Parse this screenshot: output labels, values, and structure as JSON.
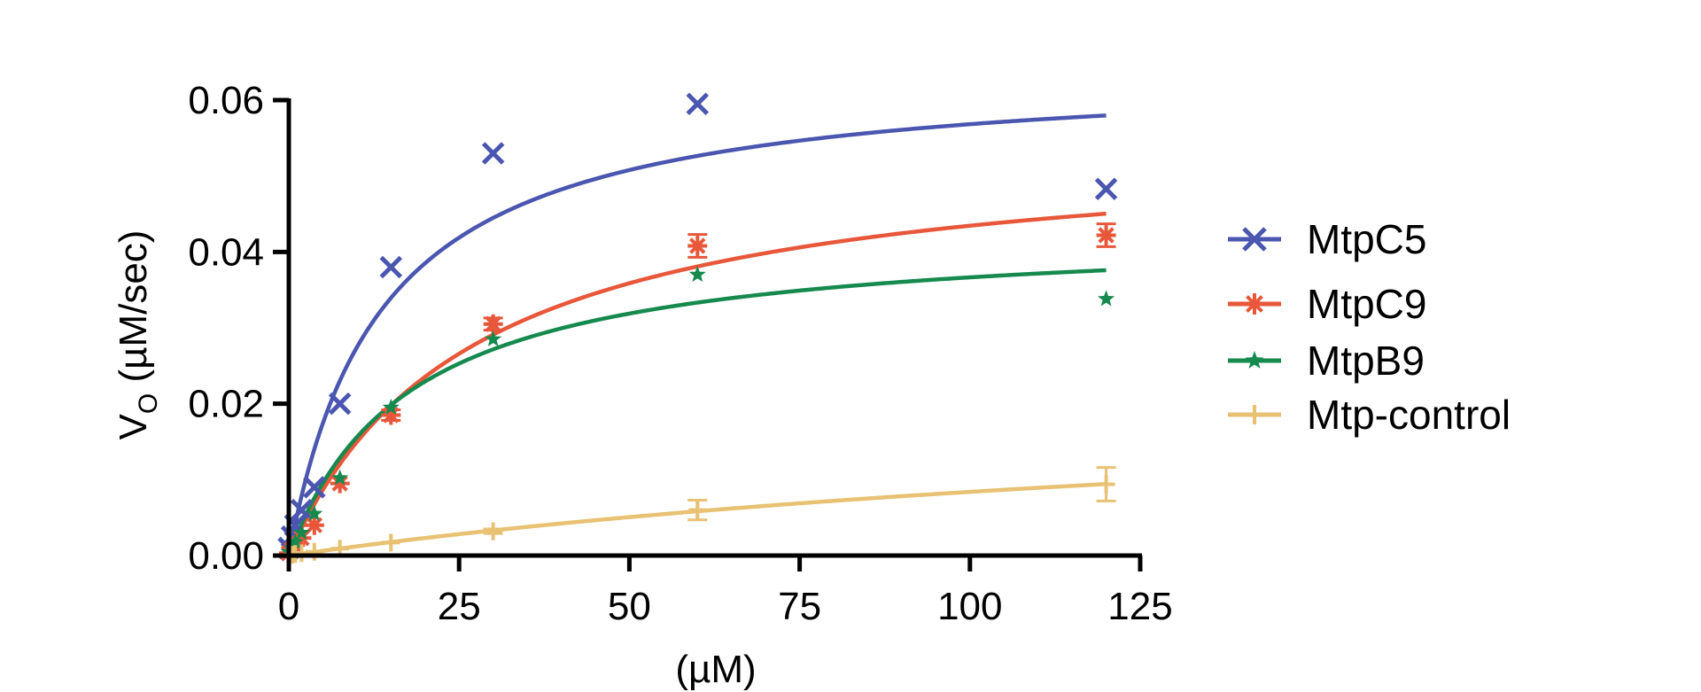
{
  "chart_data": {
    "type": "scatter",
    "xlabel": "(µM)",
    "ylabel_main": "V",
    "ylabel_sub": "O",
    "ylabel_rest": " (µM/sec)",
    "xlim": [
      0,
      125
    ],
    "ylim": [
      0,
      0.06
    ],
    "xticks": [
      0,
      25,
      50,
      75,
      100,
      125
    ],
    "yticks": [
      0.0,
      0.02,
      0.04,
      0.06
    ],
    "xtick_labels": [
      "0",
      "25",
      "50",
      "75",
      "100",
      "125"
    ],
    "ytick_labels": [
      "0.00",
      "0.02",
      "0.04",
      "0.06"
    ],
    "grid": false,
    "legend_position": "right",
    "x": [
      0,
      0.47,
      0.94,
      1.88,
      3.75,
      7.5,
      15,
      30,
      60,
      120
    ],
    "series": [
      {
        "name": "MtpC5",
        "color": "#4a56b0",
        "marker": "x",
        "y": [
          0.001,
          0.0025,
          0.004,
          0.006,
          0.009,
          0.02,
          0.038,
          0.053,
          0.0595,
          0.0483
        ],
        "err": [
          0,
          0,
          0,
          0,
          0,
          0,
          0,
          0,
          0,
          0
        ],
        "fit": {
          "vmax": 0.0645,
          "km": 13.5
        }
      },
      {
        "name": "MtpC9",
        "color": "#e8573a",
        "marker": "asterisk",
        "y": [
          0.0003,
          0.0008,
          0.0014,
          0.0023,
          0.004,
          0.0095,
          0.0185,
          0.0305,
          0.0408,
          0.0422
        ],
        "err": [
          0,
          0,
          0,
          0,
          0,
          0,
          0.0007,
          0.0008,
          0.0015,
          0.0015
        ],
        "fit": {
          "vmax": 0.0551,
          "km": 26.8
        }
      },
      {
        "name": "MtpB9",
        "color": "#168a4e",
        "marker": "star",
        "y": [
          0.0005,
          0.001,
          0.0018,
          0.003,
          0.0055,
          0.0102,
          0.0195,
          0.0285,
          0.037,
          0.0338
        ],
        "err": [
          0,
          0,
          0,
          0,
          0,
          0,
          0,
          0,
          0,
          0
        ],
        "fit": {
          "vmax": 0.0431,
          "km": 17.6
        }
      },
      {
        "name": "Mtp-control",
        "color": "#e8c172",
        "marker": "plus",
        "y": [
          0.0,
          0.0001,
          0.0002,
          0.0003,
          0.0005,
          0.0009,
          0.0017,
          0.0032,
          0.006,
          0.0094
        ],
        "err": [
          0,
          0,
          0,
          0,
          0,
          0,
          0,
          0.0003,
          0.0013,
          0.0022
        ],
        "fit": {
          "vmax": 0.0245,
          "km": 192
        }
      }
    ]
  }
}
